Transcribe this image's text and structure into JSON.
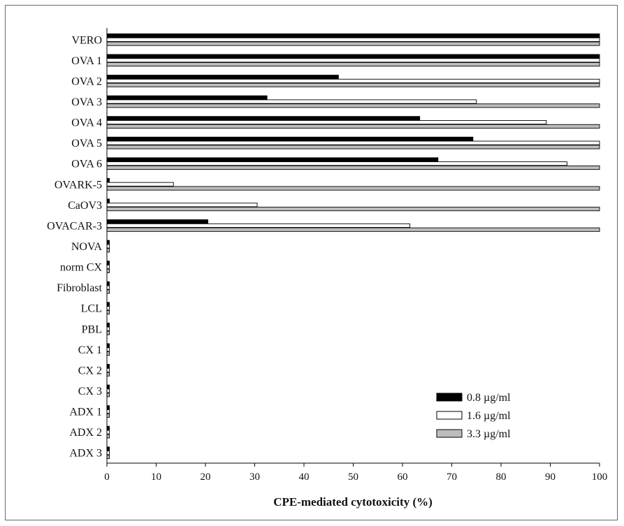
{
  "chart_data": {
    "type": "bar",
    "orientation": "horizontal",
    "title": "",
    "xlabel": "CPE-mediated cytotoxicity (%)",
    "ylabel": "",
    "xlim": [
      0,
      100
    ],
    "xticks": [
      0,
      10,
      20,
      30,
      40,
      50,
      60,
      70,
      80,
      90,
      100
    ],
    "grid": false,
    "legend_position": "bottom-right",
    "categories": [
      "VERO",
      "OVA 1",
      "OVA 2",
      "OVA 3",
      "OVA 4",
      "OVA 5",
      "OVA 6",
      "OVARK-5",
      "CaOV3",
      "OVACAR-3",
      "NOVA",
      "norm CX",
      "Fibroblast",
      "LCL",
      "PBL",
      "CX 1",
      "CX 2",
      "CX 3",
      "ADX 1",
      "ADX 2",
      "ADX 3"
    ],
    "series": [
      {
        "name": "0.8 µg/ml",
        "color": "#000000",
        "values": [
          100,
          100,
          47,
          32.5,
          63.5,
          74.3,
          67.2,
          0.5,
          0.5,
          20.5,
          0.5,
          0.5,
          0.5,
          0.5,
          0.5,
          0.5,
          0.5,
          0.5,
          0.5,
          0.5,
          0.5
        ]
      },
      {
        "name": "1.6 µg/ml",
        "color": "#ffffff",
        "values": [
          100,
          100,
          100,
          75,
          89.2,
          100,
          93.4,
          13.5,
          30.5,
          61.5,
          0.5,
          0.5,
          0.5,
          0.5,
          0.5,
          0.5,
          0.5,
          0.5,
          0.5,
          0.5,
          0.5
        ]
      },
      {
        "name": "3.3 µg/ml",
        "color": "#bdbdbd",
        "values": [
          100,
          100,
          100,
          100,
          100,
          100,
          100,
          100,
          100,
          100,
          0.5,
          0.5,
          0.5,
          0.5,
          0.5,
          0.5,
          0.5,
          0.5,
          0.5,
          0.5,
          0.5
        ]
      }
    ]
  }
}
